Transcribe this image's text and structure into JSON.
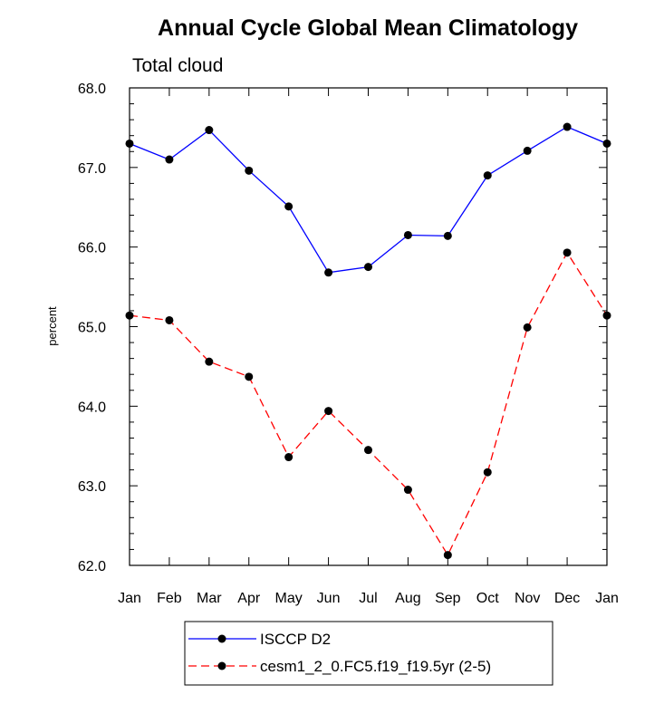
{
  "chart_data": {
    "type": "line",
    "title": "Annual Cycle Global Mean Climatology",
    "subtitle": "Total cloud",
    "xlabel": "",
    "ylabel": "percent",
    "categories": [
      "Jan",
      "Feb",
      "Mar",
      "Apr",
      "May",
      "Jun",
      "Jul",
      "Aug",
      "Sep",
      "Oct",
      "Nov",
      "Dec",
      "Jan"
    ],
    "ylim": [
      62.0,
      68.0
    ],
    "yticks": [
      "62.0",
      "63.0",
      "64.0",
      "65.0",
      "66.0",
      "67.0",
      "68.0"
    ],
    "grid": false,
    "legend_position": "bottom",
    "series": [
      {
        "name": "ISCCP D2",
        "color": "#0000ff",
        "line_style": "solid",
        "marker": "filled-circle",
        "values": [
          67.3,
          67.1,
          67.47,
          66.96,
          66.51,
          65.68,
          65.75,
          66.15,
          66.14,
          66.9,
          67.21,
          67.51,
          67.3
        ]
      },
      {
        "name": "cesm1_2_0.FC5.f19_f19.5yr (2-5)",
        "color": "#ff0000",
        "line_style": "dashed",
        "marker": "filled-circle",
        "values": [
          65.14,
          65.08,
          64.56,
          64.37,
          63.36,
          63.94,
          63.45,
          62.95,
          62.13,
          63.17,
          64.99,
          65.93,
          65.14
        ]
      }
    ]
  }
}
